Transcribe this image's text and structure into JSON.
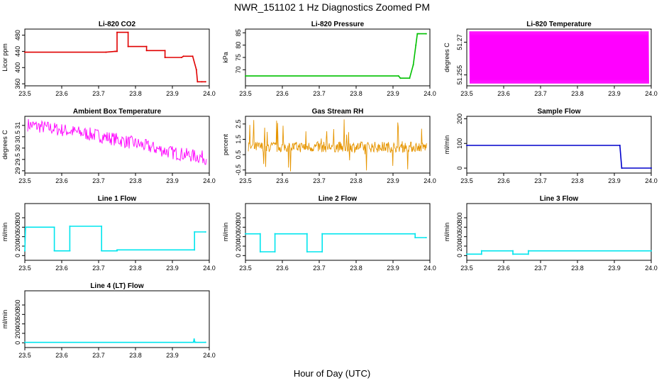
{
  "figure": {
    "title": "NWR_151102  1 Hz Diagnostics Zoomed PM",
    "xlabel": "Hour of Day (UTC)"
  },
  "chart_data": [
    {
      "type": "line",
      "name": "co2",
      "title": "Li-820 CO2",
      "ylabel": "Licor ppm",
      "color": "#e00000",
      "xlim": [
        23.5,
        24.0
      ],
      "xticks": [
        23.5,
        23.6,
        23.7,
        23.8,
        23.9,
        24.0
      ],
      "ylim": [
        355,
        495
      ],
      "yticks": [
        360,
        400,
        440,
        480
      ],
      "style": "steps",
      "x": [
        23.5,
        23.72,
        23.745,
        23.75,
        23.75,
        23.78,
        23.78,
        23.83,
        23.83,
        23.88,
        23.88,
        23.925,
        23.93,
        23.955,
        23.965,
        23.968,
        23.98,
        23.99
      ],
      "y": [
        438,
        438,
        440,
        440,
        487,
        487,
        452,
        452,
        442,
        442,
        425,
        425,
        428,
        428,
        395,
        365,
        365,
        365
      ]
    },
    {
      "type": "line",
      "name": "pressure",
      "title": "Li-820 Pressure",
      "ylabel": "kPa",
      "color": "#00c000",
      "xlim": [
        23.5,
        24.0
      ],
      "xticks": [
        23.5,
        23.6,
        23.7,
        23.8,
        23.9,
        24.0
      ],
      "ylim": [
        63.5,
        86.5
      ],
      "yticks": [
        70,
        75,
        80,
        85
      ],
      "style": "steps",
      "x": [
        23.5,
        23.915,
        23.92,
        23.945,
        23.955,
        23.962,
        23.966,
        23.97,
        23.99
      ],
      "y": [
        67.5,
        67.5,
        66.6,
        66.6,
        72.0,
        80.0,
        84.6,
        84.6,
        84.6
      ]
    },
    {
      "type": "line",
      "name": "licor_temp",
      "title": "Li-820 Temperature",
      "ylabel": "degrees C",
      "color": "#ff00ff",
      "xlim": [
        23.5,
        24.0
      ],
      "xticks": [
        23.5,
        23.6,
        23.7,
        23.8,
        23.9,
        24.0
      ],
      "ylim": [
        51.25,
        51.276
      ],
      "yticks": [
        51.255,
        51.27
      ],
      "style": "binary-noise",
      "low": 51.251,
      "high": 51.275,
      "gaps": [
        23.558,
        23.612,
        23.653,
        23.747,
        23.772,
        23.781,
        23.812,
        23.846,
        23.858,
        23.878,
        23.885,
        23.917
      ]
    },
    {
      "type": "line",
      "name": "box_temp",
      "title": "Ambient Box Temperature",
      "ylabel": "degrees C",
      "color": "#ff00ff",
      "xlim": [
        23.5,
        24.0
      ],
      "xticks": [
        23.5,
        23.6,
        23.7,
        23.8,
        23.9,
        24.0
      ],
      "ylim": [
        28.9,
        31.4
      ],
      "yticks": [
        29.0,
        29.5,
        30.0,
        30.5,
        31.0
      ],
      "style": "noisy-trend",
      "trend_x": [
        23.5,
        23.6,
        23.7,
        23.8,
        23.9,
        24.0
      ],
      "trend_y": [
        31.05,
        30.8,
        30.55,
        30.2,
        29.8,
        29.55
      ],
      "noise": 0.3
    },
    {
      "type": "line",
      "name": "rh",
      "title": "Gas Stream RH",
      "ylabel": "percent",
      "color": "#e69500",
      "xlim": [
        23.5,
        24.0
      ],
      "xticks": [
        23.5,
        23.6,
        23.7,
        23.8,
        23.9,
        24.0
      ],
      "ylim": [
        -0.7,
        3.0
      ],
      "yticks": [
        -0.5,
        0.5,
        1.5,
        2.5
      ],
      "style": "spiky-noise",
      "mean": 1.0,
      "noise": 0.35,
      "spike_max": 2.8,
      "spike_min": -0.6
    },
    {
      "type": "line",
      "name": "sample_flow",
      "title": "Sample Flow",
      "ylabel": "ml/min",
      "color": "#0000cc",
      "xlim": [
        23.5,
        24.0
      ],
      "xticks": [
        23.5,
        23.6,
        23.7,
        23.8,
        23.9,
        24.0
      ],
      "ylim": [
        -20,
        210
      ],
      "yticks": [
        0,
        100,
        200
      ],
      "style": "steps",
      "x": [
        23.5,
        23.915,
        23.92,
        24.0
      ],
      "y": [
        92,
        92,
        0,
        0
      ]
    },
    {
      "type": "line",
      "name": "line1",
      "title": "Line 1 Flow",
      "ylabel": "ml/min",
      "color": "#00e5ee",
      "xlim": [
        23.5,
        24.0
      ],
      "xticks": [
        23.5,
        23.6,
        23.7,
        23.8,
        23.9,
        24.0
      ],
      "ylim": [
        -100,
        1100
      ],
      "yticks": [
        0,
        200,
        400,
        600,
        800
      ],
      "style": "steps",
      "x": [
        23.5,
        23.502,
        23.58,
        23.58,
        23.622,
        23.622,
        23.708,
        23.708,
        23.75,
        23.75,
        23.96,
        23.96,
        23.99
      ],
      "y": [
        100,
        600,
        600,
        100,
        100,
        620,
        620,
        100,
        100,
        120,
        120,
        500,
        500
      ]
    },
    {
      "type": "line",
      "name": "line2",
      "title": "Line 2 Flow",
      "ylabel": "ml/min",
      "color": "#00e5ee",
      "xlim": [
        23.5,
        24.0
      ],
      "xticks": [
        23.5,
        23.6,
        23.7,
        23.8,
        23.9,
        24.0
      ],
      "ylim": [
        -100,
        1100
      ],
      "yticks": [
        0,
        200,
        400,
        600,
        800
      ],
      "style": "steps",
      "x": [
        23.5,
        23.54,
        23.54,
        23.58,
        23.58,
        23.667,
        23.667,
        23.708,
        23.708,
        23.96,
        23.96,
        23.99
      ],
      "y": [
        460,
        460,
        80,
        80,
        460,
        460,
        80,
        80,
        460,
        460,
        380,
        380
      ]
    },
    {
      "type": "line",
      "name": "line3",
      "title": "Line 3 Flow",
      "ylabel": "ml/min",
      "color": "#00e5ee",
      "xlim": [
        23.5,
        24.0
      ],
      "xticks": [
        23.5,
        23.6,
        23.7,
        23.8,
        23.9,
        24.0
      ],
      "ylim": [
        -100,
        1100
      ],
      "yticks": [
        0,
        200,
        400,
        600,
        800
      ],
      "style": "steps",
      "x": [
        23.5,
        23.54,
        23.54,
        23.625,
        23.625,
        23.667,
        23.667,
        24.0
      ],
      "y": [
        30,
        30,
        100,
        100,
        30,
        30,
        100,
        100
      ]
    },
    {
      "type": "line",
      "name": "line4",
      "title": "Line 4 (LT) Flow",
      "ylabel": "ml/min",
      "color": "#00e5ee",
      "xlim": [
        23.5,
        24.0
      ],
      "xticks": [
        23.5,
        23.6,
        23.7,
        23.8,
        23.9,
        24.0
      ],
      "ylim": [
        -100,
        1100
      ],
      "yticks": [
        0,
        200,
        400,
        600,
        800
      ],
      "style": "steps",
      "x": [
        23.5,
        23.957,
        23.959,
        23.961,
        23.963,
        23.99
      ],
      "y": [
        10,
        10,
        80,
        10,
        10,
        10
      ]
    }
  ]
}
